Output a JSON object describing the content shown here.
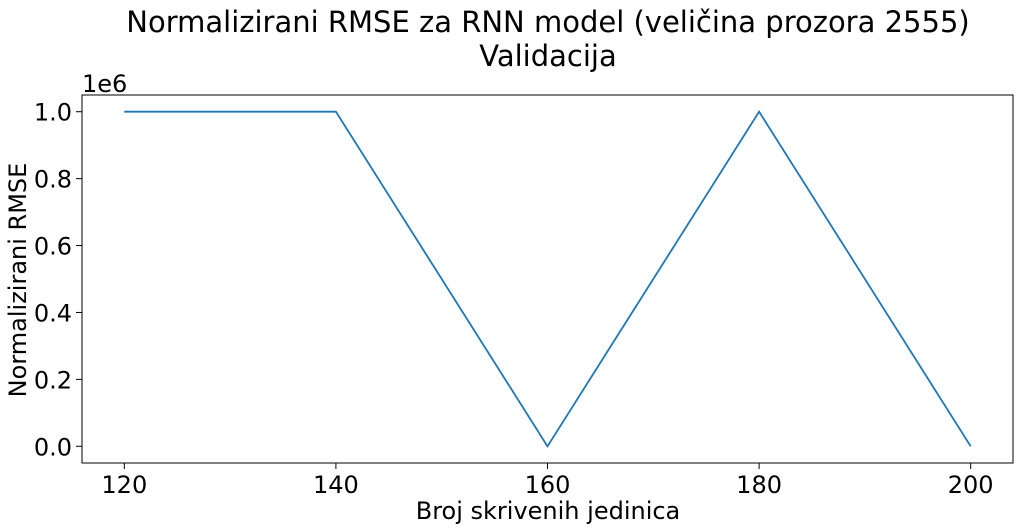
{
  "chart_data": {
    "type": "line",
    "title": "Normalizirani RMSE za RNN model (veličina prozora 2555)",
    "subtitle": "Validacija",
    "xlabel": "Broj skrivenih jedinica",
    "ylabel": "Normalizirani RMSE",
    "y_offset_label": "1e6",
    "x": [
      120,
      140,
      160,
      180,
      200
    ],
    "series": [
      {
        "values": [
          1.0,
          1.0,
          0.0,
          1.0,
          0.0
        ],
        "color": "#1f77b4"
      }
    ],
    "xticks": [
      "120",
      "140",
      "160",
      "180",
      "200"
    ],
    "yticks": [
      "0.0",
      "0.2",
      "0.4",
      "0.6",
      "0.8",
      "1.0"
    ],
    "xlim": [
      116,
      204
    ],
    "ylim": [
      -0.05,
      1.05
    ],
    "grid": false,
    "legend": "none"
  }
}
